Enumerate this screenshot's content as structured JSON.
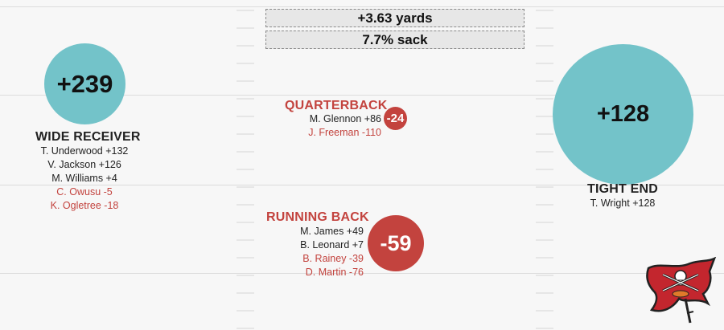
{
  "summary": {
    "yards": "+3.63 yards",
    "sack": "7.7% sack"
  },
  "groups": {
    "wide_receiver": {
      "title": "WIDE RECEIVER",
      "total": "+239",
      "players": [
        {
          "text": "T. Underwood +132",
          "sign": "pos"
        },
        {
          "text": "V. Jackson +126",
          "sign": "pos"
        },
        {
          "text": "M. Williams +4",
          "sign": "pos"
        },
        {
          "text": "C. Owusu -5",
          "sign": "neg"
        },
        {
          "text": "K. Ogletree -18",
          "sign": "neg"
        }
      ]
    },
    "quarterback": {
      "title": "QUARTERBACK",
      "total": "-24",
      "players": [
        {
          "text": "M. Glennon +86",
          "sign": "pos"
        },
        {
          "text": "J. Freeman -110",
          "sign": "neg"
        }
      ]
    },
    "running_back": {
      "title": "RUNNING BACK",
      "total": "-59",
      "players": [
        {
          "text": "M. James +49",
          "sign": "pos"
        },
        {
          "text": "B. Leonard +7",
          "sign": "pos"
        },
        {
          "text": "B. Rainey -39",
          "sign": "neg"
        },
        {
          "text": "D. Martin -76",
          "sign": "neg"
        }
      ]
    },
    "tight_end": {
      "title": "TIGHT END",
      "total": "+128",
      "players": [
        {
          "text": "T. Wright +128",
          "sign": "pos"
        }
      ]
    }
  },
  "colors": {
    "positive": "#73c3c9",
    "negative": "#c3433e",
    "field": "#f7f7f7"
  },
  "logo": {
    "icon": "buccaneers-flag-logo"
  }
}
